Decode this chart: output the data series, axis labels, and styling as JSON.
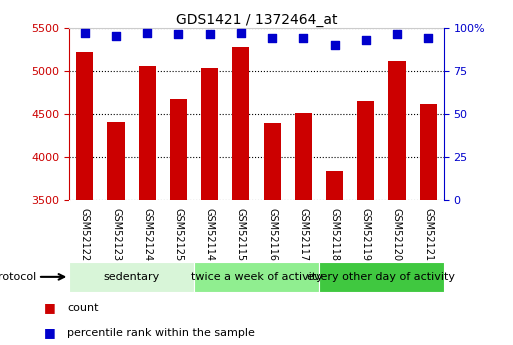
{
  "title": "GDS1421 / 1372464_at",
  "samples": [
    "GSM52122",
    "GSM52123",
    "GSM52124",
    "GSM52125",
    "GSM52114",
    "GSM52115",
    "GSM52116",
    "GSM52117",
    "GSM52118",
    "GSM52119",
    "GSM52120",
    "GSM52121"
  ],
  "counts": [
    5220,
    4400,
    5050,
    4670,
    5030,
    5280,
    4390,
    4510,
    3840,
    4650,
    5110,
    4610
  ],
  "percentile_ranks": [
    97,
    95,
    97,
    96,
    96,
    97,
    94,
    94,
    90,
    93,
    96,
    94
  ],
  "ylim_left": [
    3500,
    5500
  ],
  "ylim_right": [
    0,
    100
  ],
  "yticks_left": [
    3500,
    4000,
    4500,
    5000,
    5500
  ],
  "yticks_right": [
    0,
    25,
    50,
    75,
    100
  ],
  "groups": [
    {
      "label": "sedentary",
      "start": 0,
      "end": 4,
      "color": "#d8f5d8"
    },
    {
      "label": "twice a week of activity",
      "start": 4,
      "end": 8,
      "color": "#90ee90"
    },
    {
      "label": "every other day of activity",
      "start": 8,
      "end": 12,
      "color": "#40c840"
    }
  ],
  "bar_color": "#cc0000",
  "dot_color": "#0000cc",
  "sample_bg_color": "#d0d0d0",
  "bar_width": 0.55,
  "grid_color": "black",
  "bg_color": "#ffffff",
  "protocol_label": "protocol",
  "legend_count_label": "count",
  "legend_pct_label": "percentile rank within the sample",
  "left_axis_color": "#cc0000",
  "right_axis_color": "#0000cc",
  "title_fontsize": 10,
  "tick_fontsize": 8,
  "sample_fontsize": 7,
  "group_label_fontsize": 8,
  "protocol_fontsize": 8,
  "legend_fontsize": 8
}
